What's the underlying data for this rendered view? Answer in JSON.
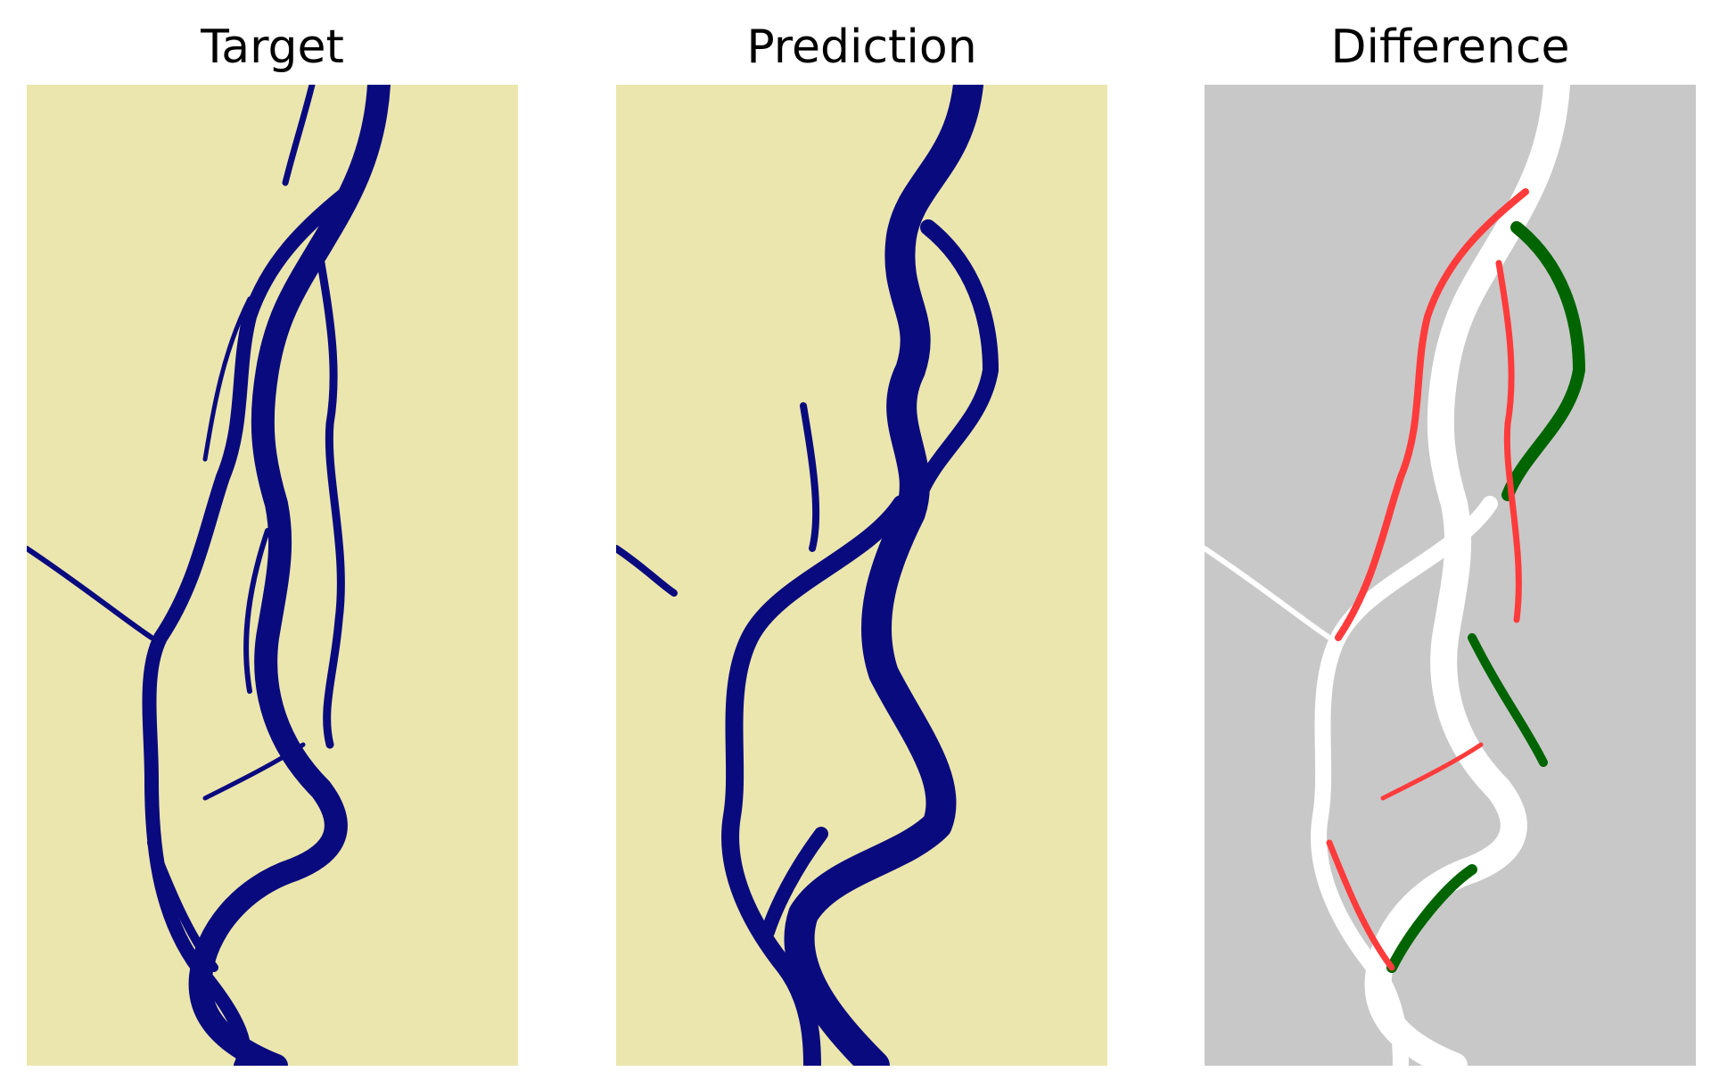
{
  "figure": {
    "panels": [
      {
        "title": "Target",
        "background": "#ebe6ad",
        "water": "#0a0a7f"
      },
      {
        "title": "Prediction",
        "background": "#ebe6ad",
        "water": "#0a0a7f"
      },
      {
        "title": "Difference",
        "background": "#c8c8c8",
        "agree": "#ffffff",
        "missed": "#ff3b3b",
        "extra": "#006400"
      }
    ]
  }
}
